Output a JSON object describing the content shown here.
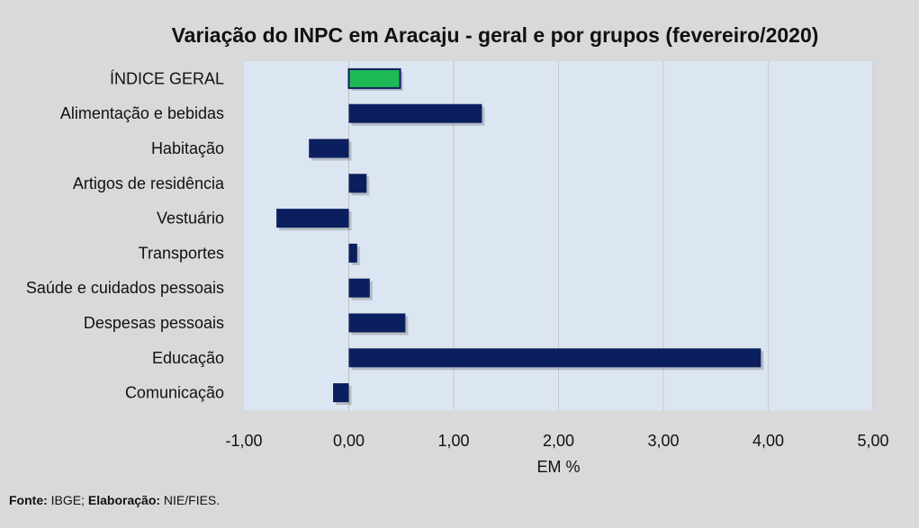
{
  "chart_data": {
    "type": "bar",
    "orientation": "horizontal",
    "title": "Variação do INPC em Aracaju - geral e por grupos (fevereiro/2020)",
    "xlabel": "EM %",
    "ylabel": "",
    "xlim": [
      -1,
      5
    ],
    "xticks": [
      -1,
      0,
      1,
      2,
      3,
      4,
      5
    ],
    "xtick_labels": [
      "-1,00",
      "0,00",
      "1,00",
      "2,00",
      "3,00",
      "4,00",
      "5,00"
    ],
    "grid": true,
    "categories": [
      "ÍNDICE GERAL",
      "Alimentação e bebidas",
      "Habitação",
      "Artigos de residência",
      "Vestuário",
      "Transportes",
      "Saúde e cuidados pessoais",
      "Despesas pessoais",
      "Educação",
      "Comunicação"
    ],
    "values": [
      0.49,
      1.27,
      -0.38,
      0.17,
      -0.69,
      0.08,
      0.2,
      0.54,
      3.93,
      -0.15
    ],
    "colors": {
      "highlight": "#1db954",
      "bar": "#0b1f5e",
      "plot_bg": "#dce6f2",
      "page_bg": "#d9d9d9",
      "grid": "#c8c8c8"
    }
  },
  "source": {
    "label1": "Fonte:",
    "text1": " IBGE; ",
    "label2": "Elaboração:",
    "text2": " NIE/FIES."
  }
}
